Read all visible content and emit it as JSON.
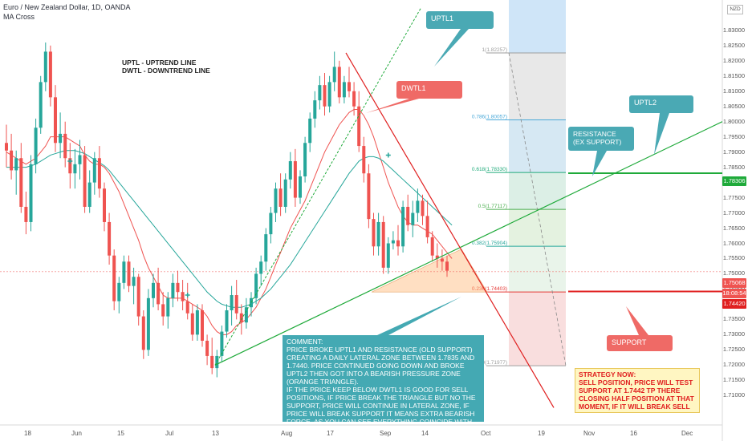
{
  "header": {
    "title": "Euro / New Zealand Dollar, 1D, OANDA",
    "indicator": "MA Cross",
    "currency_badge": "NZD"
  },
  "legend_note": {
    "line1": "UPTL  -   UPTREND LINE",
    "line2": "DWTL -  DOWNTREND LINE"
  },
  "callouts": {
    "uptl1": "UPTL1",
    "dwtl1": "DWTL1",
    "uptl2": "UPTL2",
    "resistance": "RESISTANCE (EX SUPPORT)",
    "support": "SUPPORT"
  },
  "comment": "COMMENT:\nPRICE BROKE UPTL1 AND RESISTANCE (OLD SUPPORT) CREATING A DAILY LATERAL ZONE BETWEEN 1.7835 AND 1.7440. PRICE CONTINUED GOING DOWN AND BROKE UPTL2 THEN GOT INTO A BEARISH PRESSURE ZONE (ORANGE TRIANGLE).\nIF THE PRICE KEEP BELOW DWTL1 IS GOOD FOR SELL POSITIONS,  IF PRICE BREAK THE TRIANGLE BUT NO THE SUPPORT, PRICE WILL CONTINUE IN LATERAL ZONE, IF PRICE WILL BREAK SUPPORT IT MEANS EXTRA BEARISH FORCE. AS YOU CAN SEE EVERYTHING COINCIDE WITH FIB RETRACEMENT.",
  "strategy": "STRATEGY NOW:\nSELL POSITION, PRICE WILL TEST SUPPORT AT 1.7442 TP THERE CLOSING HALF POSITION AT THAT MOMENT, IF IT WILL BREAK SELL AGAIN.",
  "price_badges": {
    "resistance": "1.78306",
    "current": "1.75068",
    "countdown": "18:08:54",
    "support": "1.74420"
  },
  "colors": {
    "bull": "#26a69a",
    "bear": "#ef5350",
    "uptrend": "#1faa3a",
    "downtrend": "#e02020",
    "callout_teal": "#4aa9b4",
    "callout_red": "#ef6a66",
    "comment_bg": "#44a9b3",
    "strategy_bg": "#fff6c2"
  },
  "chart_data": {
    "type": "candlestick",
    "title": "Euro / New Zealand Dollar, 1D, OANDA",
    "y_axis": {
      "range": [
        1.7048,
        1.8376
      ],
      "ticks": [
        "1.83000",
        "1.82500",
        "1.82000",
        "1.81500",
        "1.81000",
        "1.80500",
        "1.80000",
        "1.79500",
        "1.79000",
        "1.78500",
        "1.78000",
        "1.77500",
        "1.77000",
        "1.76500",
        "1.76000",
        "1.75500",
        "1.75000",
        "1.74500",
        "1.74000",
        "1.73500",
        "1.73000",
        "1.72500",
        "1.72000",
        "1.71500",
        "1.71000"
      ]
    },
    "x_axis": {
      "tick_labels": [
        "18",
        "Jun",
        "15",
        "Jul",
        "13",
        "Aug",
        "17",
        "Sep",
        "14",
        "Oct",
        "19",
        "Nov",
        "16",
        "Dec"
      ]
    },
    "candles": [
      {
        "date": "May 6",
        "o": 1.793,
        "h": 1.799,
        "l": 1.785,
        "c": 1.7905
      },
      {
        "date": "May 7",
        "o": 1.7905,
        "h": 1.796,
        "l": 1.781,
        "c": 1.784
      },
      {
        "date": "May 8",
        "o": 1.784,
        "h": 1.7905,
        "l": 1.776,
        "c": 1.788
      },
      {
        "date": "May 11",
        "o": 1.788,
        "h": 1.793,
        "l": 1.77,
        "c": 1.772
      },
      {
        "date": "May 12",
        "o": 1.772,
        "h": 1.777,
        "l": 1.763,
        "c": 1.767
      },
      {
        "date": "May 13",
        "o": 1.767,
        "h": 1.789,
        "l": 1.764,
        "c": 1.786
      },
      {
        "date": "May 14",
        "o": 1.786,
        "h": 1.801,
        "l": 1.783,
        "c": 1.798
      },
      {
        "date": "May 15",
        "o": 1.798,
        "h": 1.815,
        "l": 1.796,
        "c": 1.813
      },
      {
        "date": "May 18",
        "o": 1.813,
        "h": 1.826,
        "l": 1.81,
        "c": 1.823
      },
      {
        "date": "May 19",
        "o": 1.823,
        "h": 1.825,
        "l": 1.805,
        "c": 1.808
      },
      {
        "date": "May 20",
        "o": 1.808,
        "h": 1.812,
        "l": 1.79,
        "c": 1.793
      },
      {
        "date": "May 21",
        "o": 1.793,
        "h": 1.803,
        "l": 1.788,
        "c": 1.796
      },
      {
        "date": "May 22",
        "o": 1.796,
        "h": 1.8,
        "l": 1.785,
        "c": 1.788
      },
      {
        "date": "May 25",
        "o": 1.788,
        "h": 1.793,
        "l": 1.778,
        "c": 1.783
      },
      {
        "date": "May 26",
        "o": 1.783,
        "h": 1.791,
        "l": 1.778,
        "c": 1.786
      },
      {
        "date": "May 27",
        "o": 1.786,
        "h": 1.794,
        "l": 1.781,
        "c": 1.789
      },
      {
        "date": "May 28",
        "o": 1.789,
        "h": 1.792,
        "l": 1.77,
        "c": 1.772
      },
      {
        "date": "May 29",
        "o": 1.772,
        "h": 1.784,
        "l": 1.77,
        "c": 1.78
      },
      {
        "date": "Jun 1",
        "o": 1.78,
        "h": 1.79,
        "l": 1.776,
        "c": 1.788
      },
      {
        "date": "Jun 2",
        "o": 1.788,
        "h": 1.792,
        "l": 1.775,
        "c": 1.778
      },
      {
        "date": "Jun 3",
        "o": 1.778,
        "h": 1.78,
        "l": 1.764,
        "c": 1.767
      },
      {
        "date": "Jun 4",
        "o": 1.767,
        "h": 1.77,
        "l": 1.753,
        "c": 1.756
      },
      {
        "date": "Jun 5",
        "o": 1.756,
        "h": 1.758,
        "l": 1.738,
        "c": 1.741
      },
      {
        "date": "Jun 8",
        "o": 1.741,
        "h": 1.749,
        "l": 1.737,
        "c": 1.747
      },
      {
        "date": "Jun 9",
        "o": 1.747,
        "h": 1.756,
        "l": 1.745,
        "c": 1.754
      },
      {
        "date": "Jun 10",
        "o": 1.754,
        "h": 1.756,
        "l": 1.744,
        "c": 1.746
      },
      {
        "date": "Jun 11",
        "o": 1.746,
        "h": 1.752,
        "l": 1.74,
        "c": 1.749
      },
      {
        "date": "Jun 12",
        "o": 1.749,
        "h": 1.75,
        "l": 1.733,
        "c": 1.736
      },
      {
        "date": "Jun 15",
        "o": 1.736,
        "h": 1.738,
        "l": 1.722,
        "c": 1.725
      },
      {
        "date": "Jun 16",
        "o": 1.725,
        "h": 1.745,
        "l": 1.723,
        "c": 1.742
      },
      {
        "date": "Jun 17",
        "o": 1.742,
        "h": 1.75,
        "l": 1.739,
        "c": 1.747
      },
      {
        "date": "Jun 18",
        "o": 1.747,
        "h": 1.752,
        "l": 1.738,
        "c": 1.74
      },
      {
        "date": "Jun 19",
        "o": 1.74,
        "h": 1.744,
        "l": 1.733,
        "c": 1.736
      },
      {
        "date": "Jun 22",
        "o": 1.736,
        "h": 1.744,
        "l": 1.732,
        "c": 1.742
      },
      {
        "date": "Jun 23",
        "o": 1.742,
        "h": 1.75,
        "l": 1.739,
        "c": 1.747
      },
      {
        "date": "Jun 24",
        "o": 1.747,
        "h": 1.751,
        "l": 1.741,
        "c": 1.744
      },
      {
        "date": "Jun 25",
        "o": 1.744,
        "h": 1.748,
        "l": 1.738,
        "c": 1.741
      },
      {
        "date": "Jun 26",
        "o": 1.741,
        "h": 1.747,
        "l": 1.735,
        "c": 1.737
      },
      {
        "date": "Jun 29",
        "o": 1.737,
        "h": 1.74,
        "l": 1.728,
        "c": 1.73
      },
      {
        "date": "Jun 30",
        "o": 1.73,
        "h": 1.74,
        "l": 1.728,
        "c": 1.738
      },
      {
        "date": "Jul 1",
        "o": 1.738,
        "h": 1.74,
        "l": 1.726,
        "c": 1.728
      },
      {
        "date": "Jul 2",
        "o": 1.728,
        "h": 1.73,
        "l": 1.72,
        "c": 1.723
      },
      {
        "date": "Jul 3",
        "o": 1.723,
        "h": 1.729,
        "l": 1.717,
        "c": 1.719
      },
      {
        "date": "Jul 6",
        "o": 1.719,
        "h": 1.725,
        "l": 1.716,
        "c": 1.723
      },
      {
        "date": "Jul 7",
        "o": 1.723,
        "h": 1.733,
        "l": 1.721,
        "c": 1.731
      },
      {
        "date": "Jul 8",
        "o": 1.731,
        "h": 1.74,
        "l": 1.729,
        "c": 1.738
      },
      {
        "date": "Jul 9",
        "o": 1.738,
        "h": 1.746,
        "l": 1.733,
        "c": 1.743
      },
      {
        "date": "Jul 10",
        "o": 1.743,
        "h": 1.748,
        "l": 1.735,
        "c": 1.737
      },
      {
        "date": "Jul 13",
        "o": 1.737,
        "h": 1.74,
        "l": 1.73,
        "c": 1.734
      },
      {
        "date": "Jul 14",
        "o": 1.734,
        "h": 1.742,
        "l": 1.732,
        "c": 1.739
      },
      {
        "date": "Jul 15",
        "o": 1.739,
        "h": 1.744,
        "l": 1.736,
        "c": 1.742
      },
      {
        "date": "Jul 16",
        "o": 1.742,
        "h": 1.752,
        "l": 1.74,
        "c": 1.75
      },
      {
        "date": "Jul 17",
        "o": 1.75,
        "h": 1.756,
        "l": 1.746,
        "c": 1.754
      },
      {
        "date": "Jul 20",
        "o": 1.754,
        "h": 1.765,
        "l": 1.751,
        "c": 1.763
      },
      {
        "date": "Jul 21",
        "o": 1.763,
        "h": 1.772,
        "l": 1.76,
        "c": 1.77
      },
      {
        "date": "Jul 22",
        "o": 1.77,
        "h": 1.78,
        "l": 1.767,
        "c": 1.778
      },
      {
        "date": "Jul 23",
        "o": 1.778,
        "h": 1.783,
        "l": 1.769,
        "c": 1.772
      },
      {
        "date": "Jul 24",
        "o": 1.772,
        "h": 1.783,
        "l": 1.77,
        "c": 1.781
      },
      {
        "date": "Jul 27",
        "o": 1.781,
        "h": 1.79,
        "l": 1.778,
        "c": 1.787
      },
      {
        "date": "Jul 28",
        "o": 1.787,
        "h": 1.791,
        "l": 1.772,
        "c": 1.775
      },
      {
        "date": "Jul 29",
        "o": 1.775,
        "h": 1.784,
        "l": 1.773,
        "c": 1.782
      },
      {
        "date": "Jul 30",
        "o": 1.782,
        "h": 1.795,
        "l": 1.78,
        "c": 1.793
      },
      {
        "date": "Jul 31",
        "o": 1.793,
        "h": 1.803,
        "l": 1.79,
        "c": 1.801
      },
      {
        "date": "Aug 3",
        "o": 1.801,
        "h": 1.81,
        "l": 1.798,
        "c": 1.807
      },
      {
        "date": "Aug 4",
        "o": 1.807,
        "h": 1.815,
        "l": 1.804,
        "c": 1.812
      },
      {
        "date": "Aug 5",
        "o": 1.812,
        "h": 1.816,
        "l": 1.802,
        "c": 1.805
      },
      {
        "date": "Aug 6",
        "o": 1.805,
        "h": 1.815,
        "l": 1.803,
        "c": 1.813
      },
      {
        "date": "Aug 7",
        "o": 1.813,
        "h": 1.823,
        "l": 1.81,
        "c": 1.818
      },
      {
        "date": "Aug 10",
        "o": 1.818,
        "h": 1.82,
        "l": 1.806,
        "c": 1.808
      },
      {
        "date": "Aug 11",
        "o": 1.808,
        "h": 1.815,
        "l": 1.806,
        "c": 1.813
      },
      {
        "date": "Aug 12",
        "o": 1.813,
        "h": 1.818,
        "l": 1.808,
        "c": 1.81
      },
      {
        "date": "Aug 13",
        "o": 1.81,
        "h": 1.813,
        "l": 1.802,
        "c": 1.805
      },
      {
        "date": "Aug 14",
        "o": 1.805,
        "h": 1.81,
        "l": 1.79,
        "c": 1.792
      },
      {
        "date": "Aug 17",
        "o": 1.792,
        "h": 1.795,
        "l": 1.78,
        "c": 1.783
      },
      {
        "date": "Aug 18",
        "o": 1.783,
        "h": 1.786,
        "l": 1.765,
        "c": 1.768
      },
      {
        "date": "Aug 19",
        "o": 1.768,
        "h": 1.77,
        "l": 1.756,
        "c": 1.759
      },
      {
        "date": "Aug 20",
        "o": 1.759,
        "h": 1.77,
        "l": 1.756,
        "c": 1.767
      },
      {
        "date": "Aug 21",
        "o": 1.767,
        "h": 1.769,
        "l": 1.75,
        "c": 1.752
      },
      {
        "date": "Aug 24",
        "o": 1.752,
        "h": 1.762,
        "l": 1.75,
        "c": 1.76
      },
      {
        "date": "Aug 25",
        "o": 1.76,
        "h": 1.764,
        "l": 1.758,
        "c": 1.761
      },
      {
        "date": "Aug 26",
        "o": 1.761,
        "h": 1.766,
        "l": 1.756,
        "c": 1.759
      },
      {
        "date": "Aug 27",
        "o": 1.759,
        "h": 1.774,
        "l": 1.757,
        "c": 1.772
      },
      {
        "date": "Aug 28",
        "o": 1.772,
        "h": 1.776,
        "l": 1.764,
        "c": 1.766
      },
      {
        "date": "Aug 31",
        "o": 1.766,
        "h": 1.774,
        "l": 1.762,
        "c": 1.77
      },
      {
        "date": "Sep 1",
        "o": 1.77,
        "h": 1.778,
        "l": 1.767,
        "c": 1.774
      },
      {
        "date": "Sep 2",
        "o": 1.774,
        "h": 1.776,
        "l": 1.766,
        "c": 1.769
      },
      {
        "date": "Sep 3",
        "o": 1.769,
        "h": 1.774,
        "l": 1.76,
        "c": 1.762
      },
      {
        "date": "Sep 4",
        "o": 1.762,
        "h": 1.764,
        "l": 1.754,
        "c": 1.756
      },
      {
        "date": "Sep 7",
        "o": 1.756,
        "h": 1.76,
        "l": 1.752,
        "c": 1.755
      },
      {
        "date": "Sep 8",
        "o": 1.755,
        "h": 1.758,
        "l": 1.751,
        "c": 1.754
      },
      {
        "date": "Sep 9",
        "o": 1.754,
        "h": 1.756,
        "l": 1.749,
        "c": 1.751
      }
    ],
    "moving_averages": [
      {
        "name": "MA Cross (fast)",
        "color": "#ef5350",
        "values": [
          1.79,
          1.789,
          1.788,
          1.787,
          1.786,
          1.787,
          1.788,
          1.79,
          1.792,
          1.795,
          1.795,
          1.795,
          1.795,
          1.794,
          1.793,
          1.792,
          1.789,
          1.787,
          1.786,
          1.786,
          1.785,
          1.783,
          1.78,
          1.777,
          1.773,
          1.769,
          1.765,
          1.761,
          1.756,
          1.752,
          1.749,
          1.746,
          1.743,
          1.742,
          1.742,
          1.742,
          1.742,
          1.741,
          1.74,
          1.739,
          1.738,
          1.736,
          1.733,
          1.731,
          1.73,
          1.73,
          1.731,
          1.733,
          1.734,
          1.735,
          1.737,
          1.739,
          1.742,
          1.745,
          1.749,
          1.753,
          1.757,
          1.761,
          1.765,
          1.768,
          1.771,
          1.774,
          1.778,
          1.782,
          1.786,
          1.79,
          1.793,
          1.796,
          1.799,
          1.801,
          1.803,
          1.804,
          1.804,
          1.802,
          1.799,
          1.795,
          1.79,
          1.785,
          1.78,
          1.776,
          1.772,
          1.769,
          1.767,
          1.766,
          1.766,
          1.765,
          1.764,
          1.763,
          1.761,
          1.759,
          1.757,
          1.755
        ]
      },
      {
        "name": "MA Cross (slow)",
        "color": "#26a69a",
        "values": [
          1.785,
          1.785,
          1.785,
          1.785,
          1.785,
          1.7855,
          1.786,
          1.787,
          1.788,
          1.789,
          1.7895,
          1.79,
          1.7905,
          1.7905,
          1.7905,
          1.79,
          1.7895,
          1.7885,
          1.7875,
          1.7865,
          1.7855,
          1.784,
          1.782,
          1.78,
          1.778,
          1.776,
          1.774,
          1.772,
          1.77,
          1.768,
          1.766,
          1.764,
          1.762,
          1.76,
          1.758,
          1.756,
          1.754,
          1.752,
          1.75,
          1.748,
          1.746,
          1.744,
          1.7425,
          1.741,
          1.74,
          1.7395,
          1.739,
          1.739,
          1.739,
          1.7395,
          1.74,
          1.741,
          1.742,
          1.7435,
          1.745,
          1.747,
          1.749,
          1.751,
          1.753,
          1.7555,
          1.758,
          1.7605,
          1.763,
          1.7655,
          1.768,
          1.7705,
          1.773,
          1.7755,
          1.778,
          1.7805,
          1.783,
          1.785,
          1.787,
          1.788,
          1.7885,
          1.7885,
          1.788,
          1.787,
          1.7855,
          1.784,
          1.7825,
          1.781,
          1.7795,
          1.778,
          1.7765,
          1.775,
          1.7735,
          1.772,
          1.7705,
          1.769,
          1.7675,
          1.766
        ]
      }
    ],
    "fib_retracement": [
      {
        "ratio": "1",
        "price": "1.82257",
        "label": "1(1.82257)",
        "color": "#9e9e9e"
      },
      {
        "ratio": "0.786",
        "price": "1.80057",
        "label": "0.786(1.80057)",
        "color": "#4aa9d8"
      },
      {
        "ratio": "0.618",
        "price": "1.78330",
        "label": "0.618(1.78330)",
        "color": "#1faa7a"
      },
      {
        "ratio": "0.5",
        "price": "1.77117",
        "label": "0.5(1.77117)",
        "color": "#4caf50"
      },
      {
        "ratio": "0.382",
        "price": "1.75904",
        "label": "0.382(1.75904)",
        "color": "#26a69a"
      },
      {
        "ratio": "0.236",
        "price": "1.74403",
        "label": "0.236(1.74403)",
        "color": "#e53935"
      },
      {
        "ratio": "0",
        "price": "1.71977",
        "label": "0(1.71977)",
        "color": "#9e9e9e"
      }
    ],
    "horizontal_levels": [
      {
        "name": "resistance",
        "price": 1.78306,
        "color": "#1faa3a"
      },
      {
        "name": "support",
        "price": 1.7442,
        "color": "#e02020"
      },
      {
        "name": "current",
        "price": 1.75068,
        "color": "#ef5350"
      }
    ]
  }
}
